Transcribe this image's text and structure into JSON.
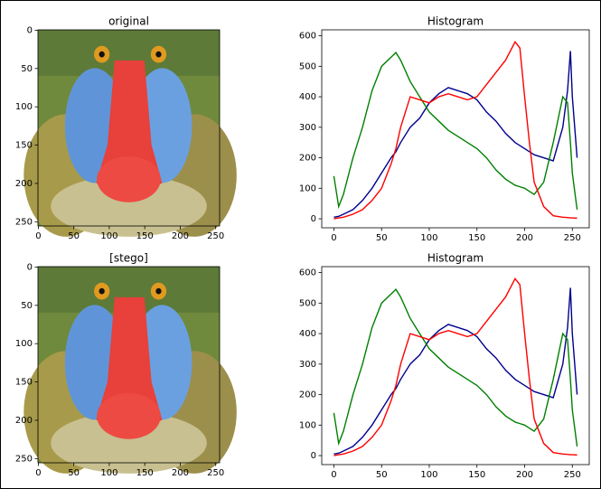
{
  "chart_data": [
    {
      "type": "image",
      "title": "original",
      "xlim": [
        -0.5,
        255.5
      ],
      "ylim": [
        255.5,
        -0.5
      ],
      "xticks": [
        0,
        50,
        100,
        150,
        200,
        250
      ],
      "yticks": [
        0,
        50,
        100,
        150,
        200,
        250
      ]
    },
    {
      "type": "line",
      "title": "Histogram",
      "x": [
        0,
        5,
        10,
        20,
        30,
        40,
        50,
        60,
        65,
        70,
        80,
        90,
        100,
        110,
        120,
        130,
        140,
        150,
        160,
        170,
        180,
        190,
        195,
        200,
        205,
        210,
        220,
        230,
        240,
        245,
        248,
        250,
        255
      ],
      "series": [
        {
          "color": "#00008b",
          "values": [
            5,
            8,
            15,
            30,
            60,
            100,
            150,
            200,
            220,
            250,
            300,
            330,
            380,
            410,
            430,
            420,
            410,
            390,
            350,
            320,
            280,
            250,
            240,
            230,
            220,
            210,
            200,
            190,
            300,
            420,
            550,
            400,
            200
          ]
        },
        {
          "color": "#008000",
          "values": [
            140,
            40,
            80,
            200,
            300,
            420,
            500,
            530,
            545,
            520,
            450,
            400,
            350,
            320,
            290,
            270,
            250,
            230,
            200,
            160,
            130,
            110,
            105,
            100,
            90,
            80,
            120,
            250,
            400,
            380,
            250,
            150,
            30
          ]
        },
        {
          "color": "#ff0000",
          "values": [
            0,
            3,
            5,
            15,
            30,
            60,
            100,
            180,
            230,
            300,
            400,
            390,
            380,
            400,
            410,
            400,
            390,
            400,
            440,
            480,
            520,
            580,
            560,
            400,
            250,
            120,
            40,
            10,
            5,
            4,
            3,
            3,
            2
          ]
        }
      ],
      "xlim": [
        -12.75,
        267.75
      ],
      "ylim": [
        -29.5,
        619.5
      ],
      "xticks": [
        0,
        50,
        100,
        150,
        200,
        250
      ],
      "yticks": [
        0,
        100,
        200,
        300,
        400,
        500,
        600
      ]
    },
    {
      "type": "image",
      "title": "[stego]",
      "xlim": [
        -0.5,
        255.5
      ],
      "ylim": [
        255.5,
        -0.5
      ],
      "xticks": [
        0,
        50,
        100,
        150,
        200,
        250
      ],
      "yticks": [
        0,
        50,
        100,
        150,
        200,
        250
      ]
    },
    {
      "type": "line",
      "title": "Histogram",
      "x": [
        0,
        5,
        10,
        20,
        30,
        40,
        50,
        60,
        65,
        70,
        80,
        90,
        100,
        110,
        120,
        130,
        140,
        150,
        160,
        170,
        180,
        190,
        195,
        200,
        205,
        210,
        220,
        230,
        240,
        245,
        248,
        250,
        255
      ],
      "series": [
        {
          "color": "#00008b",
          "values": [
            5,
            8,
            15,
            30,
            60,
            100,
            150,
            200,
            220,
            250,
            300,
            330,
            380,
            410,
            430,
            420,
            410,
            390,
            350,
            320,
            280,
            250,
            240,
            230,
            220,
            210,
            200,
            190,
            300,
            420,
            550,
            400,
            200
          ]
        },
        {
          "color": "#008000",
          "values": [
            140,
            40,
            80,
            200,
            300,
            420,
            500,
            530,
            545,
            520,
            450,
            400,
            350,
            320,
            290,
            270,
            250,
            230,
            200,
            160,
            130,
            110,
            105,
            100,
            90,
            80,
            120,
            250,
            400,
            380,
            250,
            150,
            30
          ]
        },
        {
          "color": "#ff0000",
          "values": [
            0,
            3,
            5,
            15,
            30,
            60,
            100,
            180,
            230,
            300,
            400,
            390,
            380,
            400,
            410,
            400,
            390,
            400,
            440,
            480,
            520,
            580,
            560,
            400,
            250,
            120,
            40,
            10,
            5,
            4,
            3,
            3,
            2
          ]
        }
      ],
      "xlim": [
        -12.75,
        267.75
      ],
      "ylim": [
        -29.5,
        619.5
      ],
      "xticks": [
        0,
        50,
        100,
        150,
        200,
        250
      ],
      "yticks": [
        0,
        100,
        200,
        300,
        400,
        500,
        600
      ]
    }
  ]
}
